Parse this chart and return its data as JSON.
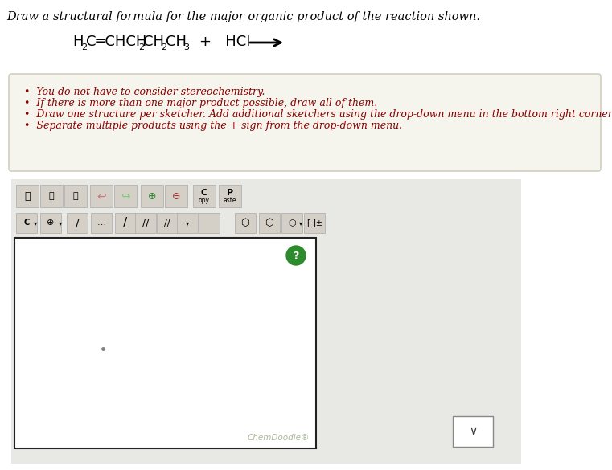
{
  "bg_color": "#f0f0ec",
  "page_bg": "#ffffff",
  "title_text": "Draw a structural formula for the major organic product of the reaction shown.",
  "title_color": "#000000",
  "title_fontsize": 10.5,
  "bullet_points": [
    "You do not have to consider stereochemistry.",
    "If there is more than one major product possible, draw all of them.",
    "Draw one structure per sketcher. Add additional sketchers using the drop-down menu in the bottom right corner.",
    "Separate multiple products using the + sign from the drop-down menu."
  ],
  "bullet_color": "#8b0000",
  "bullet_fontsize": 9.0,
  "chemdoodle_text": "ChemDoodle®",
  "chemdoodle_color": "#aab89a"
}
